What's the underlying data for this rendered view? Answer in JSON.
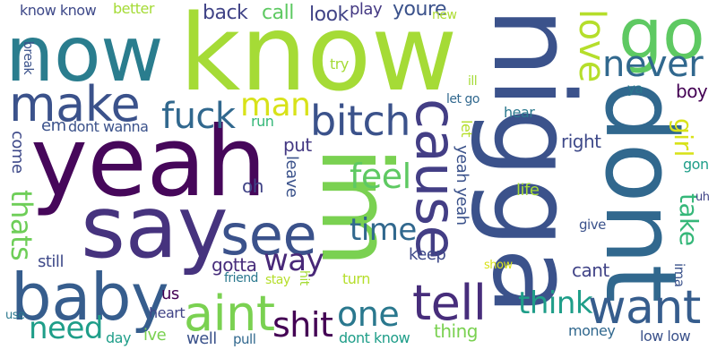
{
  "words": [
    {
      "text": "now",
      "color": "#2a7d8e"
    },
    {
      "text": "know",
      "color": "#a5db36"
    },
    {
      "text": "yeah",
      "color": "#46075a"
    },
    {
      "text": "say",
      "color": "#46337e"
    },
    {
      "text": "baby",
      "color": "#365d8d"
    },
    {
      "text": "make",
      "color": "#3b528b"
    },
    {
      "text": "im",
      "color": "#7ad151"
    },
    {
      "text": "nigga",
      "color": "#3b528b"
    },
    {
      "text": "dont",
      "color": "#31688e"
    },
    {
      "text": "go",
      "color": "#5ec962"
    },
    {
      "text": "cause",
      "color": "#433e85"
    },
    {
      "text": "see",
      "color": "#3b528b"
    },
    {
      "text": "aint",
      "color": "#7ad151"
    },
    {
      "text": "tell",
      "color": "#472d7b"
    },
    {
      "text": "want",
      "color": "#365d8d"
    },
    {
      "text": "bitch",
      "color": "#3b528b"
    },
    {
      "text": "fuck",
      "color": "#31688e"
    },
    {
      "text": "never",
      "color": "#31688e"
    },
    {
      "text": "love",
      "color": "#b5de2b"
    },
    {
      "text": "man",
      "color": "#d8e219"
    },
    {
      "text": "feel",
      "color": "#5ec962"
    },
    {
      "text": "time",
      "color": "#31688e"
    },
    {
      "text": "way",
      "color": "#482878"
    },
    {
      "text": "one",
      "color": "#2a788e"
    },
    {
      "text": "shit",
      "color": "#440154"
    },
    {
      "text": "think",
      "color": "#1f9e89"
    },
    {
      "text": "need",
      "color": "#1f9e89"
    },
    {
      "text": "thats",
      "color": "#6ece58"
    },
    {
      "text": "back",
      "color": "#414487"
    },
    {
      "text": "call",
      "color": "#5ec962"
    },
    {
      "text": "look",
      "color": "#414487"
    },
    {
      "text": "play",
      "color": "#443983"
    },
    {
      "text": "youre",
      "color": "#3b528b"
    },
    {
      "text": "new",
      "color": "#addc30"
    },
    {
      "text": "know know",
      "color": "#3e4989"
    },
    {
      "text": "better",
      "color": "#a5db36"
    },
    {
      "text": "break",
      "color": "#3b528b"
    },
    {
      "text": "em",
      "color": "#3b528b"
    },
    {
      "text": "dont wanna",
      "color": "#3b528b"
    },
    {
      "text": "come",
      "color": "#3e4989"
    },
    {
      "text": "still",
      "color": "#3e4989"
    },
    {
      "text": "us",
      "color": "#440154"
    },
    {
      "text": "heart",
      "color": "#414487"
    },
    {
      "text": "use",
      "color": "#2a788e"
    },
    {
      "text": "day",
      "color": "#1f9e89"
    },
    {
      "text": "ive",
      "color": "#7ad151"
    },
    {
      "text": "well",
      "color": "#3b528b"
    },
    {
      "text": "pull",
      "color": "#31688e"
    },
    {
      "text": "friend",
      "color": "#2a788e"
    },
    {
      "text": "stay",
      "color": "#b5de2b"
    },
    {
      "text": "hit",
      "color": "#a5db36"
    },
    {
      "text": "gotta",
      "color": "#472d7b"
    },
    {
      "text": "oh",
      "color": "#414487"
    },
    {
      "text": "leave",
      "color": "#3b528b"
    },
    {
      "text": "put",
      "color": "#443983"
    },
    {
      "text": "run",
      "color": "#35b779"
    },
    {
      "text": "try",
      "color": "#a5db36"
    },
    {
      "text": "ill",
      "color": "#a5db36"
    },
    {
      "text": "let go",
      "color": "#31688e"
    },
    {
      "text": "let",
      "color": "#b5de2b"
    },
    {
      "text": "yeah yeah",
      "color": "#3b528b"
    },
    {
      "text": "hear",
      "color": "#2a788e"
    },
    {
      "text": "life",
      "color": "#a5db36"
    },
    {
      "text": "keep",
      "color": "#3e4989"
    },
    {
      "text": "turn",
      "color": "#b5de2b"
    },
    {
      "text": "dont know",
      "color": "#1f9e89"
    },
    {
      "text": "thing",
      "color": "#7ad151"
    },
    {
      "text": "show",
      "color": "#d8e219"
    },
    {
      "text": "cant",
      "color": "#414487"
    },
    {
      "text": "give",
      "color": "#3b528b"
    },
    {
      "text": "money",
      "color": "#31688e"
    },
    {
      "text": "right",
      "color": "#3e4989"
    },
    {
      "text": "ya",
      "color": "#2a788e"
    },
    {
      "text": "boy",
      "color": "#440154"
    },
    {
      "text": "girl",
      "color": "#d8e219"
    },
    {
      "text": "gon",
      "color": "#1f9e89"
    },
    {
      "text": "take",
      "color": "#35b779"
    },
    {
      "text": "uh",
      "color": "#414487"
    },
    {
      "text": "ima",
      "color": "#3b528b"
    },
    {
      "text": "low low",
      "color": "#3b528b"
    }
  ]
}
